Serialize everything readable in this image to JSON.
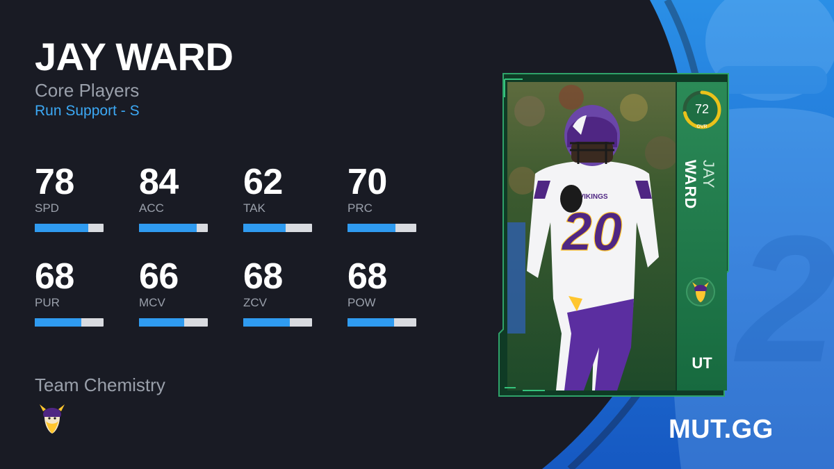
{
  "player": {
    "name": "JAY WARD",
    "program": "Core Players",
    "archetype": "Run Support - S"
  },
  "stats": [
    {
      "label": "SPD",
      "value": "78",
      "level": 0.78
    },
    {
      "label": "ACC",
      "value": "84",
      "level": 0.84
    },
    {
      "label": "TAK",
      "value": "62",
      "level": 0.62
    },
    {
      "label": "PRC",
      "value": "70",
      "level": 0.7
    },
    {
      "label": "PUR",
      "value": "68",
      "level": 0.68
    },
    {
      "label": "MCV",
      "value": "66",
      "level": 0.66
    },
    {
      "label": "ZCV",
      "value": "68",
      "level": 0.68
    },
    {
      "label": "POW",
      "value": "68",
      "level": 0.68
    }
  ],
  "chemistry": {
    "title": "Team Chemistry",
    "team_icon": "vikings-logo-icon"
  },
  "card": {
    "ovr": "72",
    "ovr_label": "OVR",
    "ovr_level": 0.72,
    "first_name": "JAY",
    "last_name": "WARD",
    "jersey_number": "20",
    "jersey_wordmark": "VIKINGS",
    "team_icon": "vikings-logo-icon",
    "badge": "UT"
  },
  "brand": "MUT.GG",
  "colors": {
    "background": "#191b24",
    "accent_blue": "#2f9bf0",
    "link_blue": "#3ca9f5",
    "card_green": "#1f7a4a",
    "ovr_ring": "#e9c21b",
    "vikings_purple": "#4f2683",
    "vikings_gold": "#ffc62f"
  }
}
